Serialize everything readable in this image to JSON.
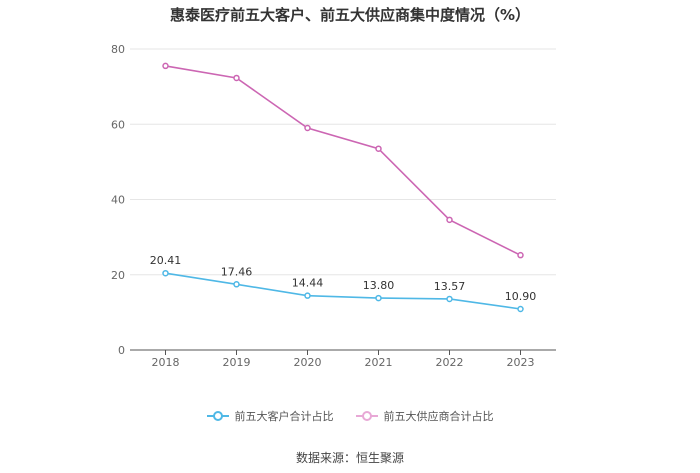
{
  "chart_data": {
    "type": "line",
    "title": "惠泰医疗前五大客户、前五大供应商集中度情况（%）",
    "categories": [
      "2018",
      "2019",
      "2020",
      "2021",
      "2022",
      "2023"
    ],
    "ylim": [
      0,
      80
    ],
    "yticks": [
      0,
      20,
      40,
      60,
      80
    ],
    "grid": true,
    "legend_position": "bottom",
    "series": [
      {
        "name": "前五大客户合计占比",
        "color": "#4fb8e6",
        "values": [
          20.41,
          17.46,
          14.44,
          13.8,
          13.57,
          10.9
        ],
        "labels": [
          "20.41",
          "17.46",
          "14.44",
          "13.80",
          "13.57",
          "10.90"
        ]
      },
      {
        "name": "前五大供应商合计占比",
        "color": "#cc66b3",
        "values": [
          75.5,
          72.3,
          59.0,
          53.5,
          34.6,
          25.2
        ],
        "labels": []
      }
    ]
  },
  "source": "数据来源：恒生聚源"
}
